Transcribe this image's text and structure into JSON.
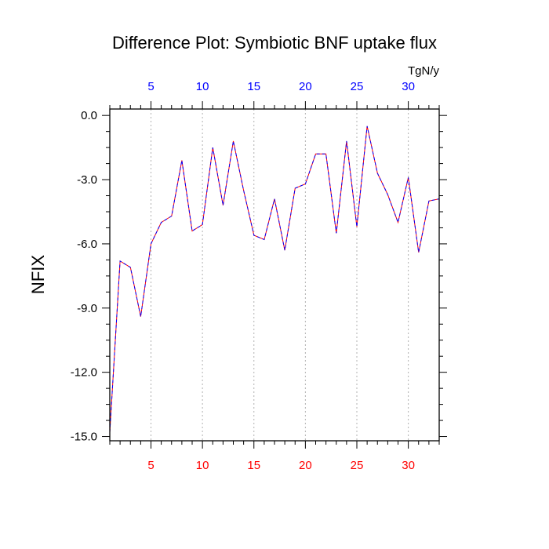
{
  "chart_data": {
    "type": "line",
    "title": "Difference Plot: Symbiotic BNF uptake flux",
    "ylabel": "NFIX",
    "units_label": "TgN/y",
    "xlim": [
      1,
      33
    ],
    "ylim": [
      -15.2,
      0.3
    ],
    "x_ticks": [
      5,
      10,
      15,
      20,
      25,
      30
    ],
    "x_tick_labels": [
      "5",
      "10",
      "15",
      "20",
      "25",
      "30"
    ],
    "y_ticks": [
      0,
      -3,
      -6,
      -9,
      -12,
      -15
    ],
    "y_tick_labels": [
      "0.0",
      "-3.0",
      "-6.0",
      "-9.0",
      "-12.0",
      "-15.0"
    ],
    "grid": "vertical dashed at major x ticks",
    "colors": {
      "bottom_ticks": "#ff0000",
      "top_ticks": "#0000ff",
      "series_a": "#ff0000",
      "series_b": "#0000ff"
    },
    "series": [
      {
        "values": [
          -14.8,
          -6.8,
          -7.1,
          -9.4,
          -6.0,
          -5.0,
          -4.7,
          -2.1,
          -5.4,
          -5.1,
          -1.5,
          -4.2,
          -1.2,
          -3.5,
          -5.6,
          -5.8,
          -3.9,
          -6.3,
          -3.4,
          -3.2,
          -1.8,
          -1.8,
          -5.5,
          -1.2,
          -5.2,
          -0.5,
          -2.7,
          -3.7,
          -5.0,
          -2.9,
          -6.4,
          -4.0,
          -3.9
        ]
      },
      {
        "values": [
          -14.8,
          -6.8,
          -7.1,
          -9.4,
          -6.0,
          -5.0,
          -4.7,
          -2.1,
          -5.4,
          -5.1,
          -1.5,
          -4.2,
          -1.2,
          -3.5,
          -5.6,
          -5.8,
          -3.9,
          -6.3,
          -3.4,
          -3.2,
          -1.8,
          -1.8,
          -5.5,
          -1.2,
          -5.2,
          -0.5,
          -2.7,
          -3.7,
          -5.0,
          -2.9,
          -6.4,
          -4.0,
          -3.9
        ]
      }
    ]
  }
}
